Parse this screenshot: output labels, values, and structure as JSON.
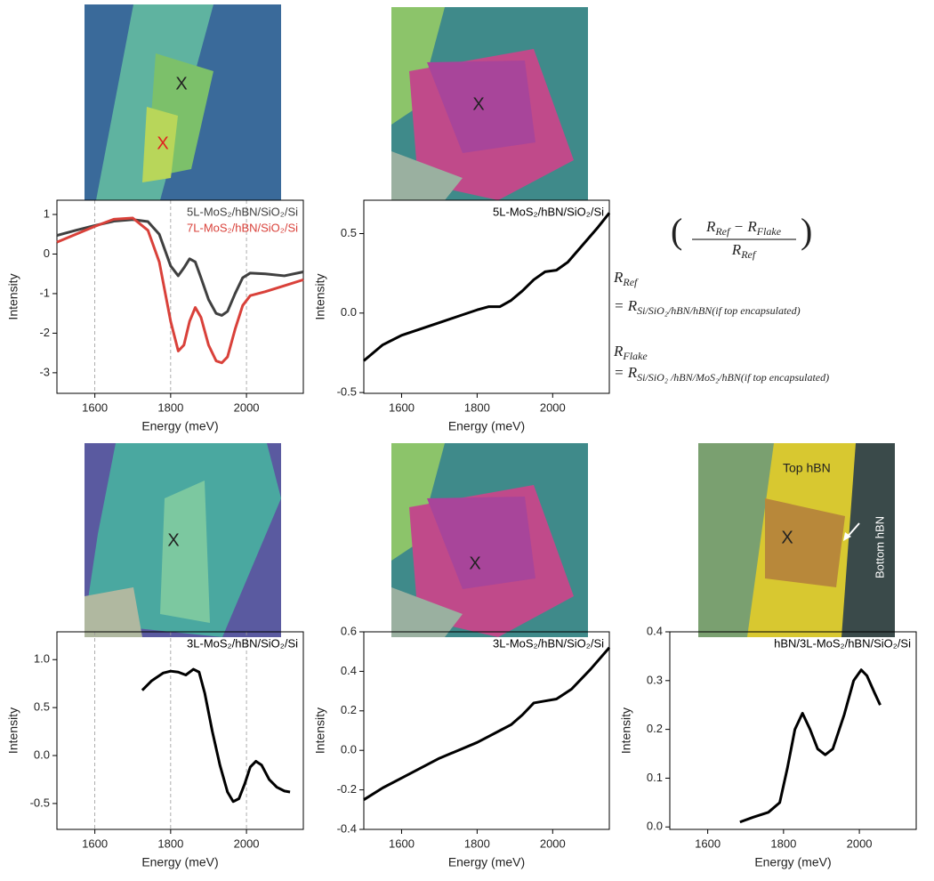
{
  "chart_data": [
    {
      "type": "line",
      "xlabel": "Energy (meV)",
      "ylabel": "Intensity",
      "x": [
        1500,
        1550,
        1600,
        1650,
        1700,
        1740,
        1770,
        1800,
        1820,
        1835,
        1850,
        1865,
        1880,
        1900,
        1920,
        1935,
        1950,
        1970,
        1990,
        2010,
        2050,
        2100,
        2150
      ],
      "series": [
        {
          "name": "5L-MoS₂/hBN/SiO₂/Si",
          "color": "#404040",
          "values": [
            0.47,
            0.6,
            0.72,
            0.83,
            0.87,
            0.82,
            0.5,
            -0.3,
            -0.55,
            -0.35,
            -0.12,
            -0.2,
            -0.6,
            -1.15,
            -1.5,
            -1.55,
            -1.45,
            -1.0,
            -0.6,
            -0.48,
            -0.5,
            -0.55,
            -0.45
          ]
        },
        {
          "name": "7L-MoS₂/hBN/SiO₂/Si",
          "color": "#d9413a",
          "values": [
            0.3,
            0.5,
            0.7,
            0.88,
            0.91,
            0.6,
            -0.2,
            -1.7,
            -2.45,
            -2.3,
            -1.7,
            -1.35,
            -1.6,
            -2.3,
            -2.7,
            -2.75,
            -2.6,
            -1.9,
            -1.3,
            -1.05,
            -0.95,
            -0.8,
            -0.65
          ]
        }
      ],
      "xlim": [
        1500,
        2150
      ],
      "xticks": [
        1600,
        1800,
        2000
      ],
      "ylim": [
        -3.52,
        1.36
      ],
      "yticks": [
        -3,
        -2,
        -1,
        0,
        1
      ],
      "vlines": [
        1600,
        1800,
        2000
      ]
    },
    {
      "type": "line",
      "xlabel": "Energy (meV)",
      "ylabel": "Intensity",
      "x": [
        1500,
        1550,
        1600,
        1650,
        1700,
        1750,
        1800,
        1830,
        1860,
        1890,
        1920,
        1950,
        1980,
        2010,
        2040,
        2080,
        2120,
        2150
      ],
      "series": [
        {
          "name": "5L-MoS₂/hBN/SiO₂/Si",
          "color": "#000000",
          "values": [
            -0.3,
            -0.2,
            -0.14,
            -0.1,
            -0.06,
            -0.02,
            0.02,
            0.04,
            0.04,
            0.08,
            0.14,
            0.21,
            0.26,
            0.27,
            0.32,
            0.43,
            0.54,
            0.63
          ]
        }
      ],
      "xlim": [
        1500,
        2150
      ],
      "xticks": [
        1600,
        1800,
        2000
      ],
      "ylim": [
        -0.505,
        0.71
      ],
      "yticks": [
        -0.5,
        {
          "value": 0,
          "label": "0.0"
        },
        0.5
      ]
    },
    {
      "type": "line",
      "xlabel": "Energy (meV)",
      "ylabel": "Intensity",
      "x": [
        1725,
        1750,
        1780,
        1800,
        1820,
        1840,
        1860,
        1875,
        1890,
        1910,
        1930,
        1950,
        1965,
        1980,
        1995,
        2010,
        2025,
        2040,
        2060,
        2080,
        2100,
        2115
      ],
      "series": [
        {
          "name": "3L-MoS₂/hBN/SiO₂/Si",
          "color": "#000000",
          "values": [
            0.68,
            0.78,
            0.86,
            0.88,
            0.87,
            0.84,
            0.9,
            0.87,
            0.65,
            0.25,
            -0.1,
            -0.38,
            -0.48,
            -0.45,
            -0.3,
            -0.12,
            -0.06,
            -0.1,
            -0.25,
            -0.33,
            -0.37,
            -0.38
          ]
        }
      ],
      "xlim": [
        1500,
        2150
      ],
      "xticks": [
        1600,
        1800,
        2000
      ],
      "ylim": [
        -0.77,
        1.29
      ],
      "yticks": [
        -0.5,
        {
          "value": 0,
          "label": "0.0"
        },
        0.5,
        {
          "value": 1,
          "label": "1.0"
        }
      ],
      "vlines": [
        1600,
        1800,
        2000
      ]
    },
    {
      "type": "line",
      "xlabel": "Energy (meV)",
      "ylabel": "Intensity",
      "x": [
        1500,
        1550,
        1600,
        1650,
        1700,
        1750,
        1800,
        1830,
        1860,
        1890,
        1920,
        1950,
        1980,
        2010,
        2050,
        2100,
        2150
      ],
      "series": [
        {
          "name": "3L-MoS₂/hBN/SiO₂/Si",
          "color": "#000000",
          "values": [
            -0.25,
            -0.19,
            -0.14,
            -0.09,
            -0.04,
            0.0,
            0.04,
            0.07,
            0.1,
            0.13,
            0.18,
            0.24,
            0.25,
            0.26,
            0.31,
            0.41,
            0.52
          ]
        }
      ],
      "xlim": [
        1500,
        2150
      ],
      "xticks": [
        1600,
        1800,
        2000
      ],
      "ylim": [
        -0.4,
        0.6
      ],
      "yticks": [
        -0.4,
        -0.2,
        {
          "value": 0,
          "label": "0.0"
        },
        0.2,
        0.4,
        0.6
      ]
    },
    {
      "type": "line",
      "xlabel": "Energy (meV)",
      "ylabel": "Intensity",
      "x": [
        1685,
        1720,
        1760,
        1790,
        1810,
        1830,
        1850,
        1870,
        1890,
        1910,
        1930,
        1960,
        1985,
        2005,
        2020,
        2040,
        2055
      ],
      "series": [
        {
          "name": "hBN/3L-MoS₂/hBN/SiO₂/Si",
          "color": "#000000",
          "values": [
            0.01,
            0.02,
            0.03,
            0.05,
            0.12,
            0.2,
            0.233,
            0.2,
            0.16,
            0.148,
            0.16,
            0.23,
            0.3,
            0.322,
            0.31,
            0.275,
            0.25
          ]
        }
      ],
      "xlim": [
        1500,
        2150
      ],
      "xticks": [
        1600,
        1800,
        2000
      ],
      "ylim": [
        -0.005,
        0.4
      ],
      "yticks": [
        {
          "value": 0,
          "label": "0.0"
        },
        0.1,
        0.2,
        0.3,
        0.4
      ]
    }
  ],
  "images": [
    {
      "markers": [
        "X",
        "X"
      ]
    },
    {
      "markers": [
        "X"
      ]
    },
    {
      "markers": [
        "X"
      ]
    },
    {
      "markers": [
        "X"
      ]
    },
    {
      "markers": [
        "X"
      ],
      "labels": [
        "Top hBN",
        "Bottom hBN"
      ]
    }
  ],
  "formula": {
    "numerator": [
      "R",
      "Ref",
      " − R",
      "Flake"
    ],
    "denominator": [
      "R",
      "Ref"
    ],
    "r_ref_lhs": [
      "R",
      "Ref"
    ],
    "r_ref_rhs": [
      "= R",
      "Si/SiO₂/hBN/hBN(if top encapsulated)"
    ],
    "r_flake_lhs": [
      "R",
      "Flake"
    ],
    "r_flake_rhs": [
      "= R",
      "Si/SiO₂ /hBN/MoS₂/hBN(if top encapsulated)"
    ]
  }
}
